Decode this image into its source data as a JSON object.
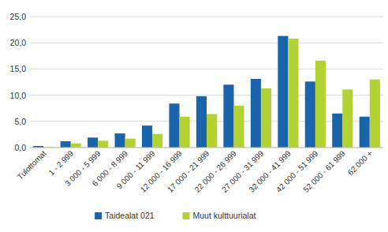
{
  "chart_data": {
    "type": "bar",
    "categories": [
      "Tulottomat",
      "1 - 2 999",
      "3 000 - 5 999",
      "6 000 - 8 999",
      "9 000 - 11 999",
      "12 000 - 16 999",
      "17 000 - 21 999",
      "22 000 - 26 999",
      "27 000 - 31 999",
      "32 000 - 41 999",
      "42 000 - 51 999",
      "52 000 - 61 999",
      "62 000 +"
    ],
    "series": [
      {
        "name": "Taidealat 021",
        "color": "#1a64ab",
        "values": [
          0.3,
          1.2,
          1.9,
          2.7,
          4.2,
          8.4,
          9.8,
          12.0,
          13.1,
          21.3,
          12.6,
          6.5,
          5.9
        ]
      },
      {
        "name": "Muut kulttuurialat",
        "color": "#b3d335",
        "values": [
          0.1,
          0.8,
          1.3,
          1.7,
          2.6,
          5.9,
          6.4,
          8.0,
          11.3,
          20.8,
          16.6,
          11.1,
          13.0
        ]
      }
    ],
    "ylim": [
      0,
      25
    ],
    "yticks": [
      {
        "value": 0,
        "label": "0,0"
      },
      {
        "value": 5,
        "label": "5,0"
      },
      {
        "value": 10,
        "label": "10,0"
      },
      {
        "value": 15,
        "label": "15,0"
      },
      {
        "value": 20,
        "label": "20,0"
      },
      {
        "value": 25,
        "label": "25,0"
      }
    ],
    "grid": true,
    "legend": "bottom"
  }
}
